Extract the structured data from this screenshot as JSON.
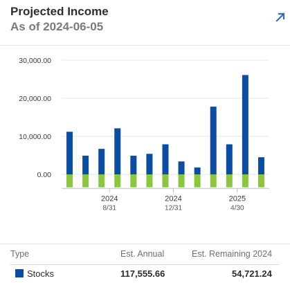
{
  "header": {
    "title": "Projected Income",
    "subtitle": "As of 2024-06-05"
  },
  "colors": {
    "stocks": "#0b4da2",
    "bonds": "#8cc63f",
    "accent": "#2f6fb8"
  },
  "chart_data": {
    "type": "bar",
    "stacked": true,
    "grid": true,
    "ylim": [
      -3500,
      30000
    ],
    "y_ticks": [
      0,
      10000,
      20000,
      30000
    ],
    "y_tick_labels": [
      "0.00",
      "10,000.00",
      "20,000.00",
      "30,000.00"
    ],
    "x_tick_labels": [
      {
        "index": 2.5,
        "year": "2024",
        "date": "8/31"
      },
      {
        "index": 6.5,
        "year": "2024",
        "date": "12/31"
      },
      {
        "index": 10.5,
        "year": "2025",
        "date": "4/30"
      }
    ],
    "series": [
      {
        "color": "#0b4da2",
        "values": [
          11200,
          4900,
          6700,
          12100,
          4900,
          5400,
          7900,
          3400,
          1800,
          17800,
          7900,
          26100,
          4500
        ]
      },
      {
        "color": "#8cc63f",
        "values": [
          -3400,
          -3400,
          -3400,
          -3400,
          -3400,
          -3400,
          -3400,
          -3400,
          -3400,
          -3400,
          -3400,
          -3400,
          -3400
        ]
      }
    ]
  },
  "table": {
    "headers": {
      "type": "Type",
      "annual": "Est. Annual",
      "remaining": "Est. Remaining 2024"
    },
    "rows": [
      {
        "type": "Stocks",
        "annual": "117,555.66",
        "remaining": "54,721.24",
        "color": "#0b4da2"
      }
    ]
  }
}
